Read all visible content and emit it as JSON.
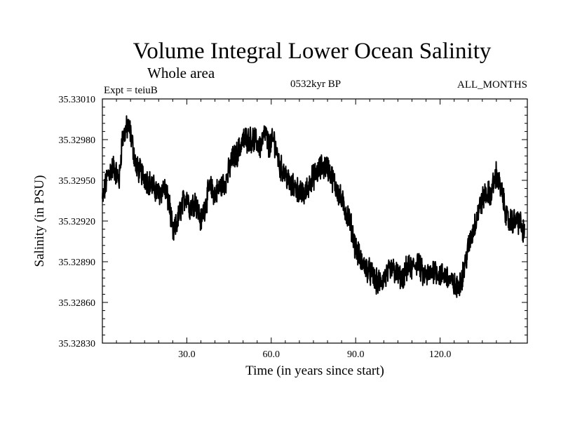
{
  "chart_data": {
    "type": "line",
    "title": "Volume Integral Lower Ocean Salinity",
    "subtitle": "Whole area",
    "annotation_left": "Expt = teiuB",
    "annotation_center": "0532kyr BP",
    "annotation_right": "ALL_MONTHS",
    "xlabel": "Time (in years since start)",
    "ylabel": "Salinity (in PSU)",
    "xlim": [
      0,
      151
    ],
    "ylim": [
      35.3283,
      35.3301
    ],
    "xticks": [
      30,
      60,
      90,
      120
    ],
    "xtick_labels": [
      "30.0",
      "60.0",
      "90.0",
      "120.0"
    ],
    "yticks": [
      35.3283,
      35.3286,
      35.3289,
      35.3292,
      35.3295,
      35.3298,
      35.3301
    ],
    "ytick_labels": [
      "35.32830",
      "35.32860",
      "35.32890",
      "35.32920",
      "35.32950",
      "35.32980",
      "35.33010"
    ],
    "grid": false,
    "series": [
      {
        "name": "salinity",
        "x": [
          0,
          2,
          4,
          6,
          7,
          9,
          10,
          12,
          14,
          16,
          18,
          20,
          22,
          24,
          25,
          26,
          28,
          30,
          31,
          33,
          35,
          37,
          38,
          40,
          42,
          44,
          46,
          48,
          50,
          52,
          54,
          56,
          58,
          59,
          61,
          63,
          65,
          67,
          69,
          70,
          72,
          74,
          76,
          78,
          80,
          82,
          84,
          86,
          88,
          90,
          92,
          94,
          96,
          97,
          99,
          101,
          103,
          105,
          107,
          108,
          110,
          112,
          114,
          116,
          118,
          120,
          122,
          124,
          126,
          128,
          130,
          132,
          134,
          136,
          138,
          140,
          142,
          144,
          146,
          148,
          150
        ],
        "values": [
          35.32935,
          35.32955,
          35.3296,
          35.3295,
          35.3298,
          35.3299,
          35.32985,
          35.3296,
          35.32955,
          35.3295,
          35.32945,
          35.3294,
          35.32945,
          35.3293,
          35.3291,
          35.32915,
          35.3293,
          35.3294,
          35.3293,
          35.32935,
          35.3292,
          35.32935,
          35.32945,
          35.3294,
          35.32945,
          35.3295,
          35.32965,
          35.3297,
          35.3298,
          35.3298,
          35.3298,
          35.32975,
          35.32985,
          35.32975,
          35.3298,
          35.3296,
          35.32955,
          35.32945,
          35.32945,
          35.3294,
          35.3294,
          35.3295,
          35.32955,
          35.3296,
          35.3296,
          35.3295,
          35.3294,
          35.3293,
          35.3292,
          35.329,
          35.3289,
          35.32885,
          35.3288,
          35.32875,
          35.32875,
          35.3288,
          35.32885,
          35.3288,
          35.32875,
          35.32885,
          35.32885,
          35.3289,
          35.3288,
          35.3288,
          35.32885,
          35.3288,
          35.3288,
          35.32875,
          35.3287,
          35.3288,
          35.329,
          35.32915,
          35.3293,
          35.3294,
          35.3294,
          35.32955,
          35.3294,
          35.3292,
          35.3292,
          35.3292,
          35.3291
        ]
      }
    ]
  }
}
